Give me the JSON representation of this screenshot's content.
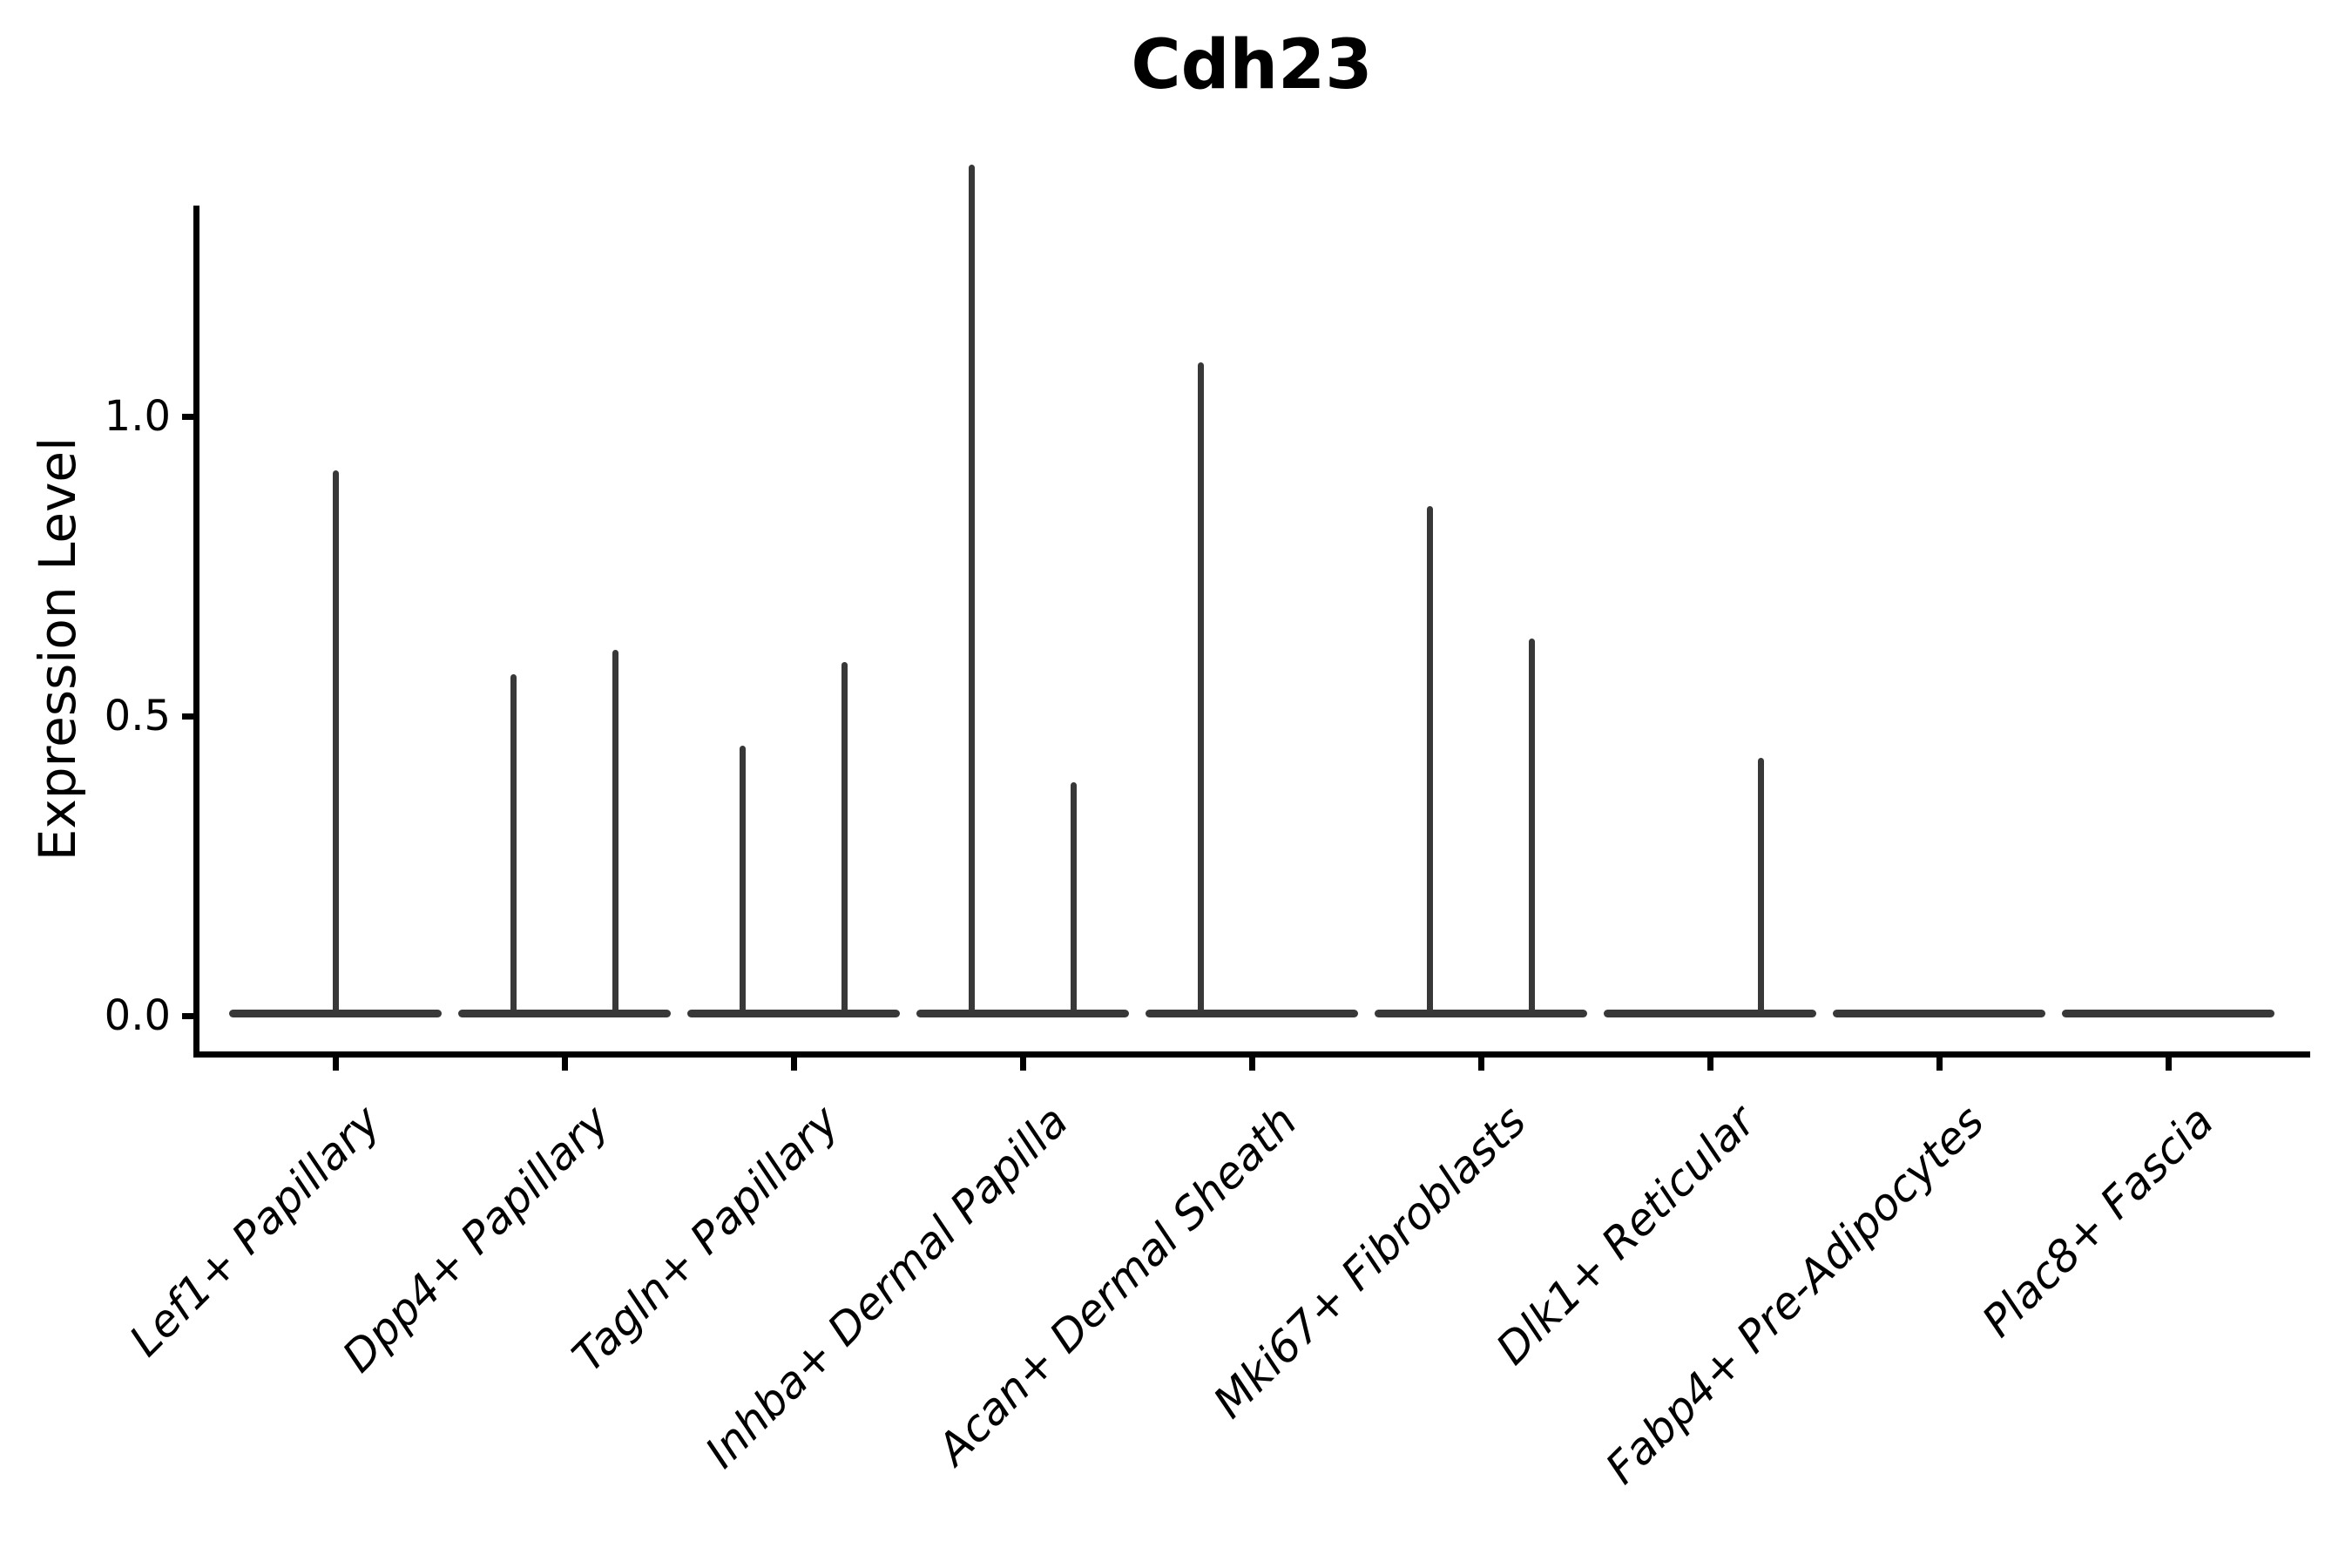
{
  "chart_data": {
    "type": "violin",
    "title": "Cdh23",
    "xlabel": "",
    "ylabel": "Expression Level",
    "ytick_labels": [
      "0.0",
      "0.5",
      "1.0"
    ],
    "ytick_values": [
      0.0,
      0.5,
      1.0
    ],
    "ylim": [
      -0.07,
      1.48
    ],
    "grid": false,
    "legend": "none",
    "categories": [
      "Lef1+ Papillary",
      "Dpp4+ Papillary",
      "Tagln+ Papillary",
      "Inhba+ Dermal Papilla",
      "Acan+ Dermal Sheath",
      "Mki67+ Fibroblasts",
      "Dlk1+ Reticular",
      "Fabp4+ Pre-Adipocytes",
      "Plac8+ Fascia"
    ],
    "violins": [
      {
        "category": "Lef1+ Papillary",
        "zero_bar": true,
        "spikes": [
          {
            "offset_frac": 0.0,
            "value": 0.91
          }
        ]
      },
      {
        "category": "Dpp4+ Papillary",
        "zero_bar": true,
        "spikes": [
          {
            "offset_frac": -0.224,
            "value": 0.57
          },
          {
            "offset_frac": 0.224,
            "value": 0.61
          }
        ]
      },
      {
        "category": "Tagln+ Papillary",
        "zero_bar": true,
        "spikes": [
          {
            "offset_frac": -0.224,
            "value": 0.45
          },
          {
            "offset_frac": 0.224,
            "value": 0.59
          }
        ]
      },
      {
        "category": "Inhba+ Dermal Papilla",
        "zero_bar": true,
        "spikes": [
          {
            "offset_frac": -0.224,
            "value": 1.42
          },
          {
            "offset_frac": 0.224,
            "value": 0.39
          }
        ]
      },
      {
        "category": "Acan+ Dermal Sheath",
        "zero_bar": true,
        "spikes": [
          {
            "offset_frac": -0.224,
            "value": 1.09
          }
        ]
      },
      {
        "category": "Mki67+ Fibroblasts",
        "zero_bar": true,
        "spikes": [
          {
            "offset_frac": -0.224,
            "value": 0.85
          },
          {
            "offset_frac": 0.224,
            "value": 0.63
          }
        ]
      },
      {
        "category": "Dlk1+ Reticular",
        "zero_bar": true,
        "spikes": [
          {
            "offset_frac": 0.224,
            "value": 0.43
          }
        ]
      },
      {
        "category": "Fabp4+ Pre-Adipocytes",
        "zero_bar": true,
        "spikes": []
      },
      {
        "category": "Plac8+ Fascia",
        "zero_bar": true,
        "spikes": []
      }
    ]
  },
  "colors": {
    "violin": "#383838",
    "axis": "#000000",
    "text": "#000000",
    "background": "#ffffff"
  }
}
